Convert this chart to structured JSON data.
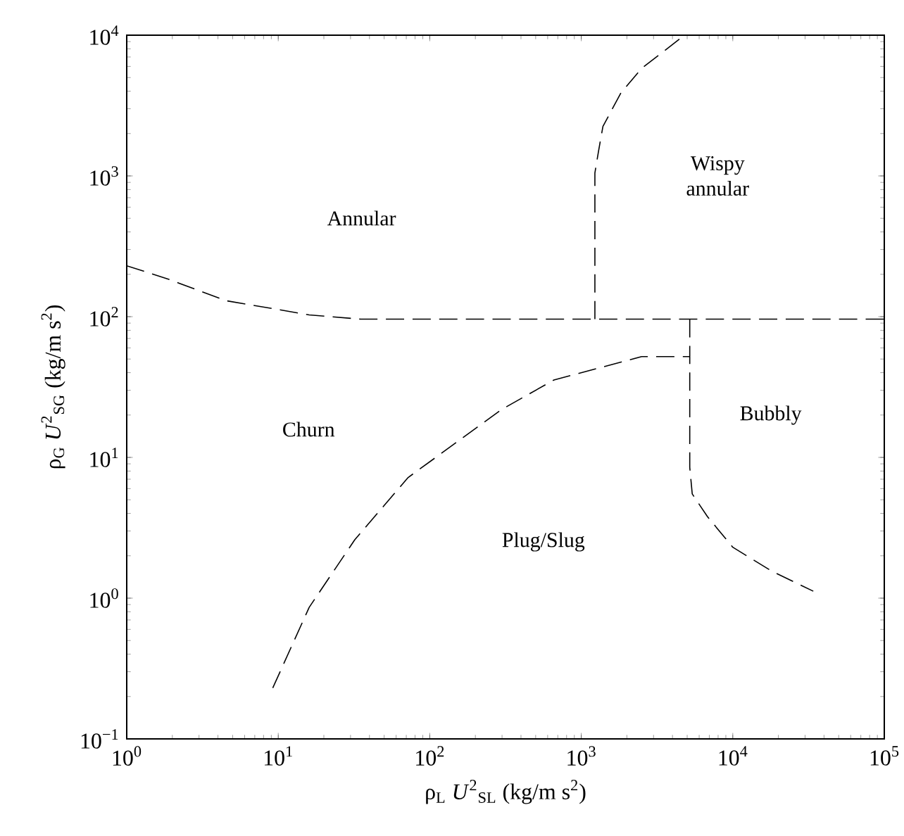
{
  "chart_data": {
    "type": "line",
    "xlabel": "ρ$_{L}$ *U*$^{2}$$_{SL}$ (kg/m s$^{2}$)",
    "ylabel": "ρ$_{G}$ *U*$^{2}$$_{SG}$ (kg/m s$^{2}$)",
    "log": "xy",
    "xlim": [
      1,
      100000
    ],
    "ylim": [
      0.1,
      10000
    ],
    "xticks": [
      {
        "value": 1,
        "label": "10$^{0}$"
      },
      {
        "value": 10,
        "label": "10$^{1}$"
      },
      {
        "value": 100,
        "label": "10$^{2}$"
      },
      {
        "value": 1000,
        "label": "10$^{3}$"
      },
      {
        "value": 10000,
        "label": "10$^{4}$"
      },
      {
        "value": 100000,
        "label": "10$^{5}$"
      }
    ],
    "yticks": [
      {
        "value": 0.1,
        "label": "10$^{−1}$"
      },
      {
        "value": 1,
        "label": "10$^{0}$"
      },
      {
        "value": 10,
        "label": "10$^{1}$"
      },
      {
        "value": 100,
        "label": "10$^{2}$"
      },
      {
        "value": 1000,
        "label": "10$^{3}$"
      },
      {
        "value": 10000,
        "label": "10$^{4}$"
      }
    ],
    "grid": false,
    "marker": "none",
    "line_style": "dashed",
    "series": [
      {
        "color": "#000000",
        "x": [
          1,
          1.9,
          4.5,
          16,
          35,
          100000
        ],
        "values": [
          230,
          184,
          130,
          103,
          96,
          96
        ]
      },
      {
        "color": "#000000",
        "x": [
          1230,
          1230,
          1300,
          1390,
          1830,
          2500,
          4800
        ],
        "values": [
          96,
          1050,
          1500,
          2250,
          3900,
          5800,
          10000
        ]
      },
      {
        "color": "#000000",
        "x": [
          9.2,
          16,
          32,
          72,
          300,
          660,
          2500,
          5200
        ],
        "values": [
          0.23,
          0.86,
          2.6,
          7.2,
          22,
          35.5,
          52,
          52
        ]
      },
      {
        "color": "#000000",
        "x": [
          5200,
          5200,
          5400,
          6800,
          10000,
          18000,
          34000
        ],
        "values": [
          96,
          8.5,
          5.5,
          3.8,
          2.3,
          1.56,
          1.12
        ]
      }
    ],
    "annotations": [
      "Annular",
      "Wispy annular",
      "Churn",
      "Plug/Slug",
      "Bubbly"
    ]
  }
}
